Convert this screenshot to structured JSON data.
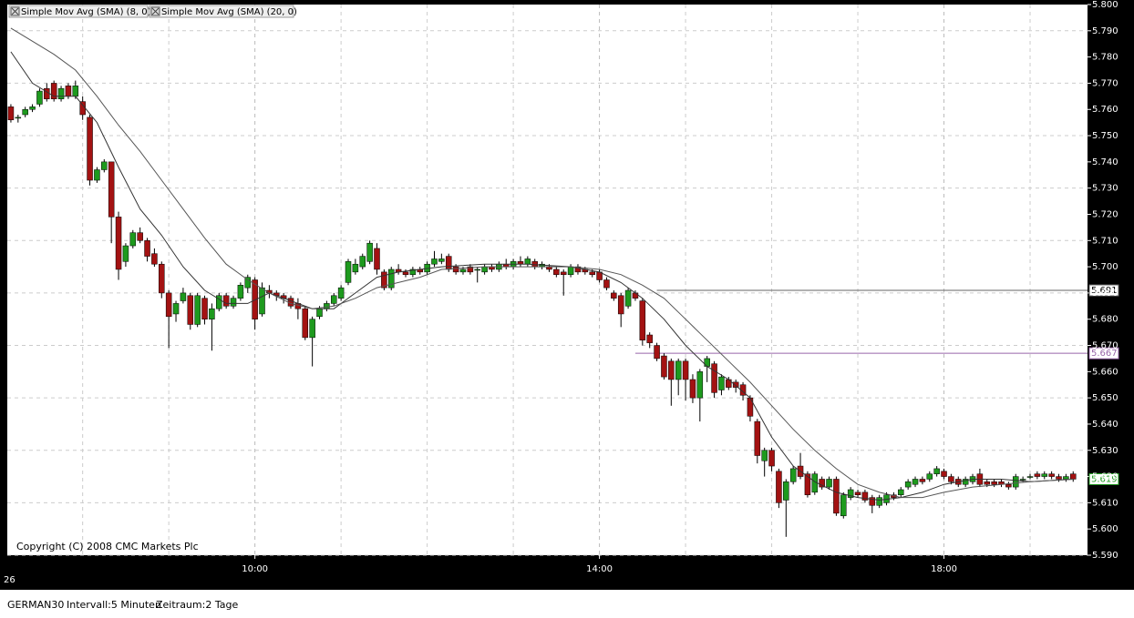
{
  "chart_data": {
    "type": "candlestick",
    "legend": [
      "Simple Mov Avg (SMA) (8, 0)",
      "Simple Mov Avg (SMA) (20, 0)"
    ],
    "copyright": "Copyright (C) 2008 CMC Markets Plc",
    "x_start_label": "26",
    "footer": {
      "symbol": "GERMAN30",
      "interval": "Intervall:5 Minuten",
      "period": "Zeitraum:2 Tage"
    },
    "up_color": "#1e9a1e",
    "down_color": "#a31212",
    "xlim": [
      -0.5,
      150
    ],
    "xticks": [
      {
        "value": 34,
        "label": "10:00"
      },
      {
        "value": 82,
        "label": "14:00"
      },
      {
        "value": 130,
        "label": "18:00"
      }
    ],
    "xgrid": [
      10,
      22,
      46,
      58,
      70,
      94,
      106,
      118,
      142
    ],
    "ylim": [
      5.59,
      5.8
    ],
    "yticks": [
      {
        "value": 5.8,
        "label": "5.800"
      },
      {
        "value": 5.79,
        "label": "5.790"
      },
      {
        "value": 5.78,
        "label": "5.780"
      },
      {
        "value": 5.77,
        "label": "5.770"
      },
      {
        "value": 5.76,
        "label": "5.760"
      },
      {
        "value": 5.75,
        "label": "5.750"
      },
      {
        "value": 5.74,
        "label": "5.740"
      },
      {
        "value": 5.73,
        "label": "5.730"
      },
      {
        "value": 5.72,
        "label": "5.720"
      },
      {
        "value": 5.71,
        "label": "5.710"
      },
      {
        "value": 5.7,
        "label": "5.700"
      },
      {
        "value": 5.69,
        "label": "5.690"
      },
      {
        "value": 5.68,
        "label": "5.680"
      },
      {
        "value": 5.67,
        "label": "5.670"
      },
      {
        "value": 5.66,
        "label": "5.660"
      },
      {
        "value": 5.65,
        "label": "5.650"
      },
      {
        "value": 5.64,
        "label": "5.640"
      },
      {
        "value": 5.63,
        "label": "5.630"
      },
      {
        "value": 5.62,
        "label": "5.620"
      },
      {
        "value": 5.61,
        "label": "5.610"
      },
      {
        "value": 5.6,
        "label": "5.600"
      },
      {
        "value": 5.59,
        "label": "5.590"
      }
    ],
    "price_lines": [
      {
        "value": 5.691,
        "label": "5.691",
        "color": "#666666",
        "start": 90
      },
      {
        "value": 5.667,
        "label": "5.667",
        "color": "#9966aa",
        "start": 87
      },
      {
        "value": 5.619,
        "label": "5.619",
        "color": "#1e9a1e"
      }
    ],
    "ohlc": [
      [
        5.761,
        5.762,
        5.755,
        5.756
      ],
      [
        5.757,
        5.758,
        5.755,
        5.757
      ],
      [
        5.758,
        5.761,
        5.757,
        5.76
      ],
      [
        5.76,
        5.762,
        5.759,
        5.761
      ],
      [
        5.762,
        5.768,
        5.761,
        5.767
      ],
      [
        5.768,
        5.77,
        5.763,
        5.764
      ],
      [
        5.77,
        5.771,
        5.763,
        5.764
      ],
      [
        5.764,
        5.769,
        5.763,
        5.768
      ],
      [
        5.769,
        5.77,
        5.764,
        5.765
      ],
      [
        5.765,
        5.771,
        5.764,
        5.769
      ],
      [
        5.763,
        5.765,
        5.756,
        5.758
      ],
      [
        5.757,
        5.758,
        5.731,
        5.733
      ],
      [
        5.733,
        5.738,
        5.732,
        5.737
      ],
      [
        5.737,
        5.741,
        5.736,
        5.74
      ],
      [
        5.74,
        5.74,
        5.709,
        5.719
      ],
      [
        5.719,
        5.721,
        5.695,
        5.699
      ],
      [
        5.702,
        5.709,
        5.7,
        5.708
      ],
      [
        5.708,
        5.714,
        5.707,
        5.713
      ],
      [
        5.713,
        5.715,
        5.709,
        5.71
      ],
      [
        5.71,
        5.711,
        5.702,
        5.704
      ],
      [
        5.705,
        5.707,
        5.7,
        5.701
      ],
      [
        5.701,
        5.702,
        5.688,
        5.69
      ],
      [
        5.69,
        5.691,
        5.669,
        5.681
      ],
      [
        5.682,
        5.687,
        5.679,
        5.686
      ],
      [
        5.687,
        5.692,
        5.686,
        5.69
      ],
      [
        5.689,
        5.69,
        5.676,
        5.678
      ],
      [
        5.678,
        5.69,
        5.677,
        5.689
      ],
      [
        5.688,
        5.689,
        5.678,
        5.68
      ],
      [
        5.68,
        5.686,
        5.668,
        5.684
      ],
      [
        5.684,
        5.69,
        5.683,
        5.689
      ],
      [
        5.689,
        5.69,
        5.684,
        5.685
      ],
      [
        5.685,
        5.689,
        5.684,
        5.688
      ],
      [
        5.688,
        5.694,
        5.687,
        5.693
      ],
      [
        5.692,
        5.697,
        5.69,
        5.696
      ],
      [
        5.695,
        5.696,
        5.676,
        5.68
      ],
      [
        5.682,
        5.694,
        5.681,
        5.692
      ],
      [
        5.691,
        5.693,
        5.688,
        5.69
      ],
      [
        5.69,
        5.691,
        5.687,
        5.689
      ],
      [
        5.689,
        5.69,
        5.686,
        5.688
      ],
      [
        5.688,
        5.689,
        5.684,
        5.685
      ],
      [
        5.686,
        5.688,
        5.68,
        5.684
      ],
      [
        5.684,
        5.685,
        5.672,
        5.673
      ],
      [
        5.673,
        5.681,
        5.662,
        5.68
      ],
      [
        5.681,
        5.685,
        5.68,
        5.684
      ],
      [
        5.684,
        5.687,
        5.683,
        5.686
      ],
      [
        5.686,
        5.69,
        5.685,
        5.689
      ],
      [
        5.688,
        5.693,
        5.687,
        5.692
      ],
      [
        5.694,
        5.703,
        5.693,
        5.702
      ],
      [
        5.698,
        5.703,
        5.697,
        5.701
      ],
      [
        5.7,
        5.705,
        5.699,
        5.704
      ],
      [
        5.702,
        5.71,
        5.701,
        5.709
      ],
      [
        5.707,
        5.709,
        5.697,
        5.699
      ],
      [
        5.698,
        5.699,
        5.691,
        5.692
      ],
      [
        5.692,
        5.7,
        5.691,
        5.699
      ],
      [
        5.699,
        5.701,
        5.697,
        5.698
      ],
      [
        5.698,
        5.699,
        5.696,
        5.697
      ],
      [
        5.697,
        5.7,
        5.696,
        5.699
      ],
      [
        5.699,
        5.7,
        5.697,
        5.698
      ],
      [
        5.698,
        5.702,
        5.697,
        5.701
      ],
      [
        5.701,
        5.706,
        5.7,
        5.703
      ],
      [
        5.702,
        5.705,
        5.701,
        5.703
      ],
      [
        5.704,
        5.705,
        5.698,
        5.699
      ],
      [
        5.7,
        5.701,
        5.697,
        5.698
      ],
      [
        5.698,
        5.7,
        5.697,
        5.699
      ],
      [
        5.7,
        5.701,
        5.697,
        5.698
      ],
      [
        5.699,
        5.7,
        5.694,
        5.699
      ],
      [
        5.698,
        5.701,
        5.697,
        5.7
      ],
      [
        5.7,
        5.701,
        5.698,
        5.699
      ],
      [
        5.699,
        5.702,
        5.698,
        5.701
      ],
      [
        5.701,
        5.703,
        5.699,
        5.7
      ],
      [
        5.7,
        5.703,
        5.699,
        5.702
      ],
      [
        5.702,
        5.704,
        5.7,
        5.701
      ],
      [
        5.701,
        5.704,
        5.7,
        5.703
      ],
      [
        5.702,
        5.703,
        5.699,
        5.7
      ],
      [
        5.7,
        5.702,
        5.699,
        5.701
      ],
      [
        5.7,
        5.701,
        5.698,
        5.699
      ],
      [
        5.699,
        5.7,
        5.696,
        5.697
      ],
      [
        5.698,
        5.699,
        5.689,
        5.697
      ],
      [
        5.697,
        5.701,
        5.696,
        5.7
      ],
      [
        5.7,
        5.701,
        5.697,
        5.698
      ],
      [
        5.699,
        5.7,
        5.697,
        5.698
      ],
      [
        5.698,
        5.699,
        5.696,
        5.697
      ],
      [
        5.698,
        5.699,
        5.694,
        5.695
      ],
      [
        5.695,
        5.696,
        5.691,
        5.692
      ],
      [
        5.69,
        5.691,
        5.687,
        5.688
      ],
      [
        5.689,
        5.69,
        5.677,
        5.682
      ],
      [
        5.685,
        5.692,
        5.684,
        5.691
      ],
      [
        5.69,
        5.691,
        5.687,
        5.688
      ],
      [
        5.687,
        5.688,
        5.67,
        5.672
      ],
      [
        5.674,
        5.675,
        5.669,
        5.671
      ],
      [
        5.67,
        5.671,
        5.664,
        5.665
      ],
      [
        5.666,
        5.667,
        5.657,
        5.658
      ],
      [
        5.664,
        5.665,
        5.647,
        5.657
      ],
      [
        5.657,
        5.665,
        5.651,
        5.664
      ],
      [
        5.664,
        5.665,
        5.649,
        5.657
      ],
      [
        5.657,
        5.659,
        5.648,
        5.65
      ],
      [
        5.65,
        5.661,
        5.641,
        5.66
      ],
      [
        5.662,
        5.666,
        5.656,
        5.665
      ],
      [
        5.663,
        5.664,
        5.65,
        5.652
      ],
      [
        5.653,
        5.659,
        5.651,
        5.658
      ],
      [
        5.657,
        5.658,
        5.653,
        5.654
      ],
      [
        5.656,
        5.657,
        5.652,
        5.654
      ],
      [
        5.655,
        5.656,
        5.649,
        5.651
      ],
      [
        5.65,
        5.651,
        5.641,
        5.643
      ],
      [
        5.641,
        5.642,
        5.625,
        5.628
      ],
      [
        5.626,
        5.631,
        5.62,
        5.63
      ],
      [
        5.63,
        5.631,
        5.622,
        5.624
      ],
      [
        5.622,
        5.623,
        5.608,
        5.61
      ],
      [
        5.611,
        5.619,
        5.597,
        5.618
      ],
      [
        5.618,
        5.624,
        5.617,
        5.623
      ],
      [
        5.624,
        5.629,
        5.619,
        5.62
      ],
      [
        5.621,
        5.622,
        5.612,
        5.613
      ],
      [
        5.614,
        5.622,
        5.613,
        5.621
      ],
      [
        5.619,
        5.62,
        5.615,
        5.616
      ],
      [
        5.616,
        5.62,
        5.615,
        5.619
      ],
      [
        5.619,
        5.62,
        5.605,
        5.606
      ],
      [
        5.605,
        5.614,
        5.604,
        5.613
      ],
      [
        5.612,
        5.616,
        5.611,
        5.615
      ],
      [
        5.614,
        5.615,
        5.612,
        5.613
      ],
      [
        5.614,
        5.615,
        5.61,
        5.611
      ],
      [
        5.612,
        5.613,
        5.606,
        5.609
      ],
      [
        5.609,
        5.613,
        5.608,
        5.612
      ],
      [
        5.61,
        5.614,
        5.609,
        5.613
      ],
      [
        5.613,
        5.614,
        5.611,
        5.612
      ],
      [
        5.613,
        5.616,
        5.612,
        5.615
      ],
      [
        5.616,
        5.619,
        5.615,
        5.618
      ],
      [
        5.617,
        5.62,
        5.616,
        5.619
      ],
      [
        5.619,
        5.62,
        5.617,
        5.618
      ],
      [
        5.619,
        5.622,
        5.618,
        5.621
      ],
      [
        5.621,
        5.624,
        5.62,
        5.623
      ],
      [
        5.622,
        5.623,
        5.619,
        5.62
      ],
      [
        5.62,
        5.621,
        5.617,
        5.618
      ],
      [
        5.619,
        5.62,
        5.616,
        5.617
      ],
      [
        5.617,
        5.62,
        5.616,
        5.619
      ],
      [
        5.618,
        5.621,
        5.617,
        5.62
      ],
      [
        5.621,
        5.623,
        5.616,
        5.617
      ],
      [
        5.618,
        5.619,
        5.616,
        5.617
      ],
      [
        5.618,
        5.619,
        5.616,
        5.617
      ],
      [
        5.618,
        5.619,
        5.616,
        5.617
      ],
      [
        5.617,
        5.618,
        5.615,
        5.616
      ],
      [
        5.616,
        5.621,
        5.615,
        5.62
      ],
      [
        5.619,
        5.62,
        5.618,
        5.619
      ],
      [
        5.62,
        5.621,
        5.619,
        5.62
      ],
      [
        5.621,
        5.622,
        5.619,
        5.62
      ],
      [
        5.62,
        5.622,
        5.619,
        5.621
      ],
      [
        5.621,
        5.622,
        5.619,
        5.62
      ],
      [
        5.62,
        5.621,
        5.618,
        5.619
      ],
      [
        5.619,
        5.621,
        5.618,
        5.62
      ],
      [
        5.621,
        5.622,
        5.618,
        5.619
      ]
    ],
    "sma_x": [
      0,
      3,
      6,
      9,
      12,
      15,
      18,
      21,
      24,
      27,
      30,
      33,
      36,
      39,
      42,
      45,
      48,
      51,
      54,
      57,
      60,
      66,
      72,
      78,
      82,
      85,
      88,
      91,
      94,
      97,
      100,
      103,
      106,
      109,
      112,
      115,
      118,
      121,
      124,
      127,
      130,
      134,
      138,
      142,
      148
    ],
    "series": [
      {
        "name": "Simple Mov Avg (SMA) (8, 0)",
        "color": "#333333",
        "values": [
          5.782,
          5.77,
          5.765,
          5.765,
          5.755,
          5.738,
          5.722,
          5.712,
          5.7,
          5.691,
          5.686,
          5.686,
          5.69,
          5.687,
          5.684,
          5.684,
          5.69,
          5.696,
          5.698,
          5.699,
          5.7,
          5.701,
          5.701,
          5.7,
          5.698,
          5.694,
          5.688,
          5.68,
          5.67,
          5.662,
          5.657,
          5.65,
          5.635,
          5.624,
          5.618,
          5.614,
          5.612,
          5.611,
          5.612,
          5.614,
          5.617,
          5.619,
          5.619,
          5.618,
          5.619
        ]
      },
      {
        "name": "Simple Mov Avg (SMA) (20, 0)",
        "color": "#555555",
        "values": [
          5.791,
          5.786,
          5.781,
          5.775,
          5.765,
          5.754,
          5.744,
          5.733,
          5.722,
          5.711,
          5.701,
          5.695,
          5.69,
          5.686,
          5.684,
          5.685,
          5.688,
          5.692,
          5.694,
          5.696,
          5.699,
          5.7,
          5.7,
          5.7,
          5.699,
          5.697,
          5.693,
          5.688,
          5.68,
          5.672,
          5.664,
          5.656,
          5.647,
          5.638,
          5.63,
          5.623,
          5.617,
          5.614,
          5.612,
          5.612,
          5.614,
          5.616,
          5.617,
          5.618,
          5.619
        ]
      }
    ]
  }
}
